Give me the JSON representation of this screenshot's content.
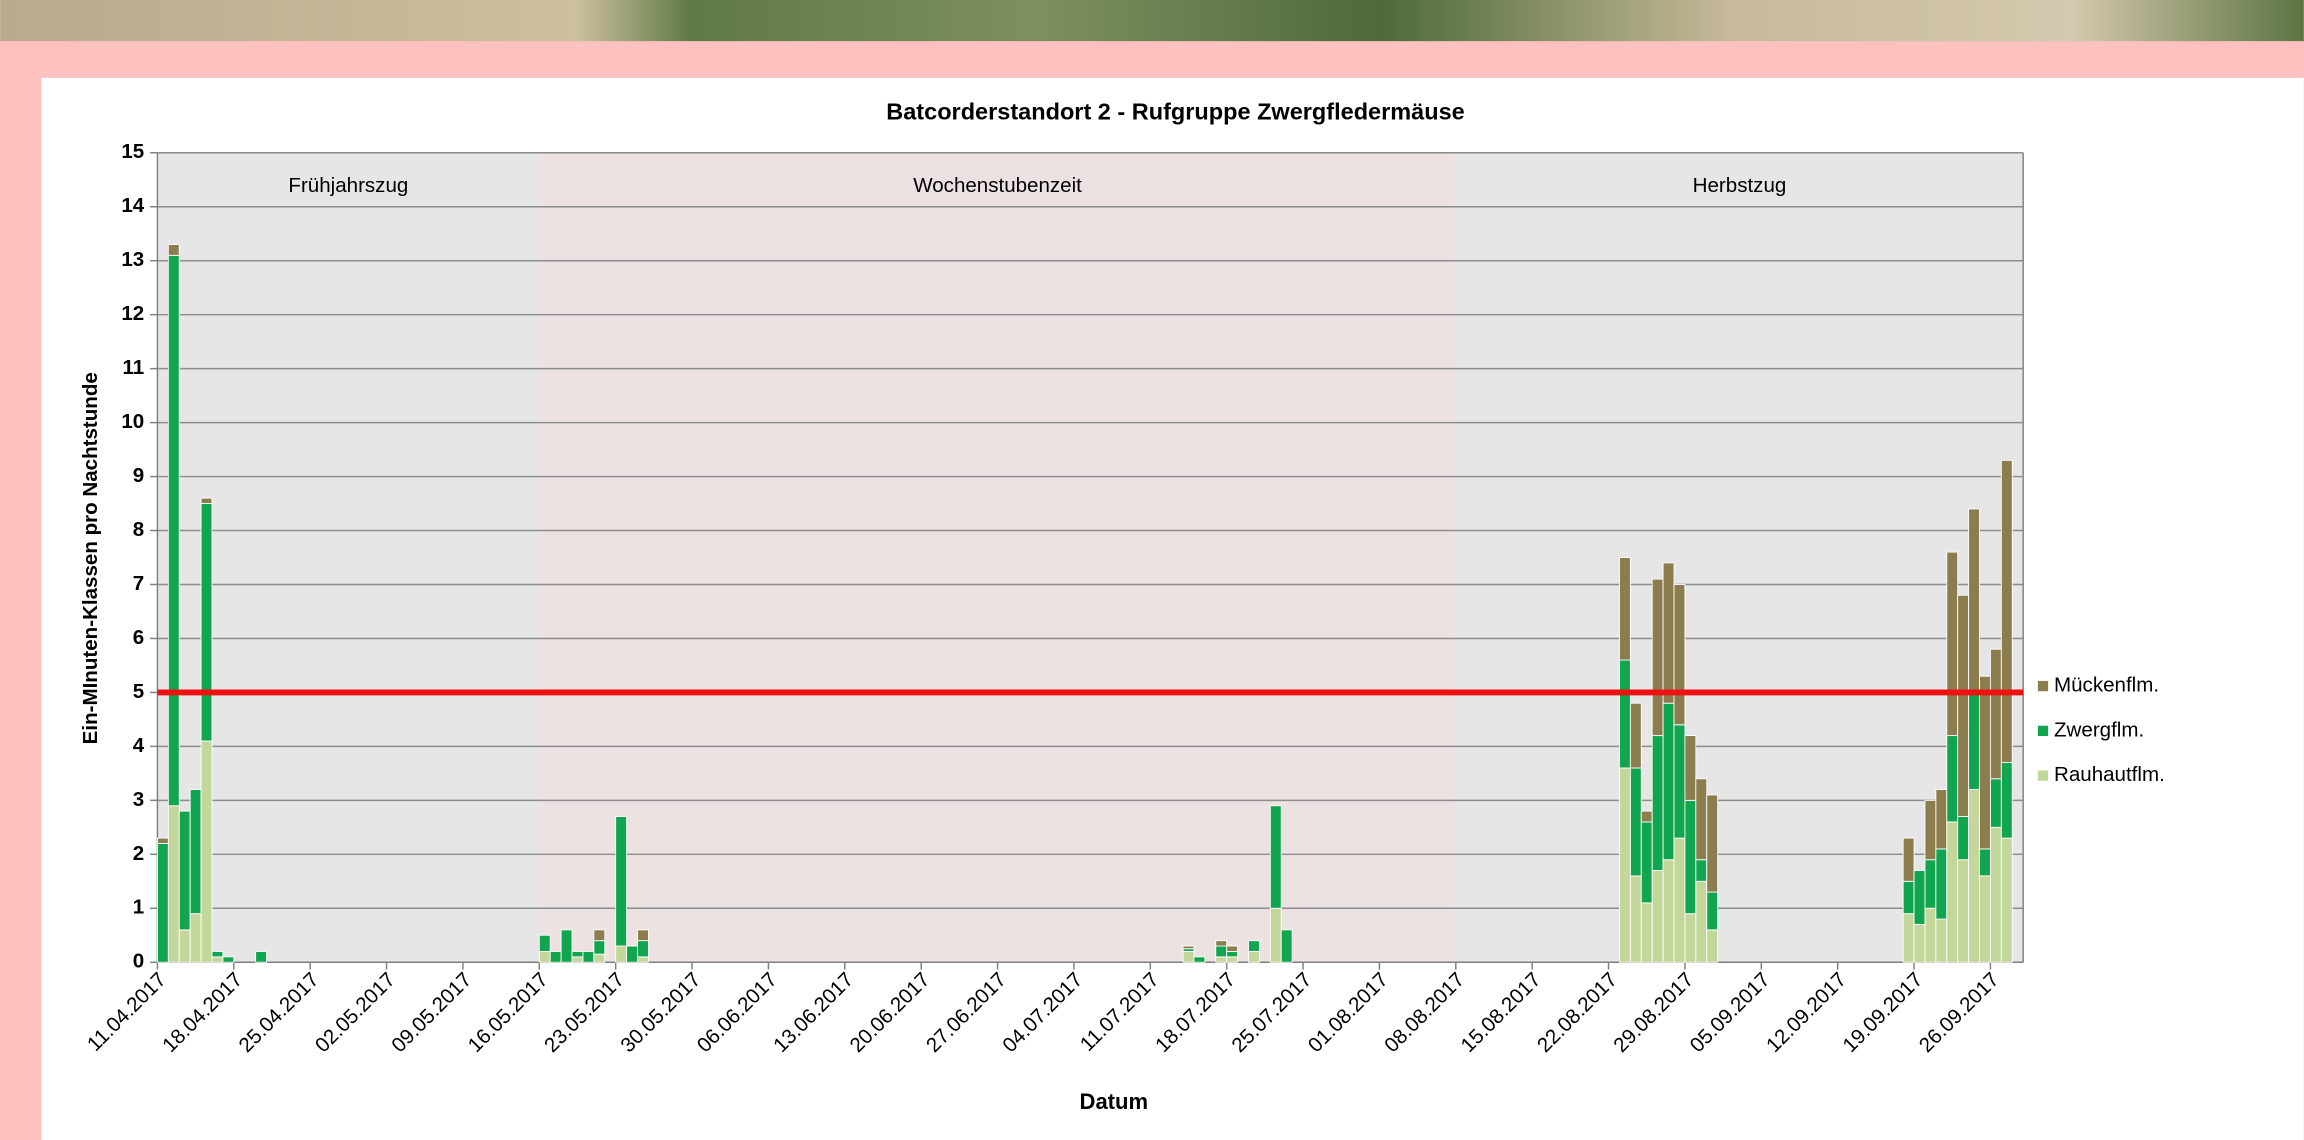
{
  "chart_data": {
    "type": "stacked_bar",
    "title": "Batcorderstandort 2 - Rufgruppe Zwergfledermäuse",
    "x_label": "Datum",
    "y_label": "Ein-MInuten-Klassen  pro Nachtstunde",
    "x": [
      "11.04.2017",
      "12.04.2017",
      "13.04.2017",
      "14.04.2017",
      "15.04.2017",
      "16.04.2017",
      "17.04.2017",
      "20.04.2017",
      "16.05.2017",
      "17.05.2017",
      "18.05.2017",
      "19.05.2017",
      "20.05.2017",
      "21.05.2017",
      "23.05.2017",
      "24.05.2017",
      "25.05.2017",
      "14.07.2017",
      "15.07.2017",
      "17.07.2017",
      "18.07.2017",
      "20.07.2017",
      "22.07.2017",
      "23.07.2017",
      "23.08.2017",
      "24.08.2017",
      "25.08.2017",
      "26.08.2017",
      "27.08.2017",
      "28.08.2017",
      "29.08.2017",
      "30.08.2017",
      "31.08.2017",
      "18.09.2017",
      "19.09.2017",
      "20.09.2017",
      "21.09.2017",
      "22.09.2017",
      "23.09.2017",
      "24.09.2017",
      "25.09.2017",
      "26.09.2017",
      "27.09.2017"
    ],
    "series": [
      {
        "name": "Rauhautflm.",
        "color": "#c4d79b",
        "values": [
          0,
          2.9,
          0.6,
          0.9,
          4.1,
          0.1,
          0,
          0,
          0.2,
          0,
          0,
          0.1,
          0,
          0.15,
          0.3,
          0,
          0.1,
          0.2,
          0,
          0.1,
          0.1,
          0.2,
          1.0,
          0,
          3.6,
          1.6,
          1.1,
          1.7,
          1.9,
          2.3,
          0.9,
          1.5,
          0.6,
          0.9,
          0.7,
          1.0,
          0.8,
          2.6,
          1.9,
          3.2,
          1.6,
          2.5,
          2.3
        ]
      },
      {
        "name": "Zwergflm.",
        "color": "#12a550",
        "values": [
          2.2,
          10.2,
          2.2,
          2.3,
          4.4,
          0.1,
          0.1,
          0.2,
          0.3,
          0.2,
          0.6,
          0.1,
          0.2,
          0.25,
          2.4,
          0.3,
          0.3,
          0.05,
          0.1,
          0.2,
          0.1,
          0.2,
          1.9,
          0.6,
          2.0,
          2.0,
          1.5,
          2.5,
          2.9,
          2.1,
          2.1,
          0.4,
          0.7,
          0.6,
          1.0,
          0.9,
          1.3,
          1.6,
          0.8,
          1.8,
          0.5,
          0.9,
          1.4
        ]
      },
      {
        "name": "Mückenflm.",
        "color": "#8b7d4e",
        "values": [
          0.1,
          0.2,
          0,
          0,
          0.1,
          0,
          0,
          0,
          0,
          0,
          0,
          0,
          0,
          0.2,
          0,
          0,
          0.2,
          0.05,
          0,
          0.1,
          0.1,
          0,
          0,
          0,
          1.9,
          1.2,
          0.2,
          2.9,
          2.6,
          2.6,
          1.2,
          1.5,
          1.8,
          0.8,
          0,
          1.1,
          1.1,
          3.4,
          4.1,
          3.4,
          3.2,
          2.4,
          5.6
        ]
      }
    ],
    "xlim": [
      "11.04.2017",
      "29.09.2017"
    ],
    "xticks": [
      "11.04.2017",
      "18.04.2017",
      "25.04.2017",
      "02.05.2017",
      "09.05.2017",
      "16.05.2017",
      "23.05.2017",
      "30.05.2017",
      "06.06.2017",
      "13.06.2017",
      "20.06.2017",
      "27.06.2017",
      "04.07.2017",
      "11.07.2017",
      "18.07.2017",
      "25.07.2017",
      "01.08.2017",
      "08.08.2017",
      "15.08.2017",
      "22.08.2017",
      "29.08.2017",
      "05.09.2017",
      "12.09.2017",
      "19.09.2017",
      "26.09.2017"
    ],
    "ylim": [
      0,
      15
    ],
    "yticks": [
      0,
      1,
      2,
      3,
      4,
      5,
      6,
      7,
      8,
      9,
      10,
      11,
      12,
      13,
      14,
      15
    ],
    "grid": true,
    "legend": "right",
    "threshold": {
      "value": 5,
      "color": "#ee1111"
    },
    "periods": [
      {
        "label": "Frühjahrszug",
        "start": "11.04.2017",
        "end": "16.05.2017",
        "color": "#e6e6e6"
      },
      {
        "label": "Wochenstubenzeit",
        "start": "16.05.2017",
        "end": "08.08.2017",
        "color": "#ede2e2"
      },
      {
        "label": "Herbstzug",
        "start": "08.08.2017",
        "end": "29.09.2017",
        "color": "#e6e6e6"
      }
    ]
  }
}
